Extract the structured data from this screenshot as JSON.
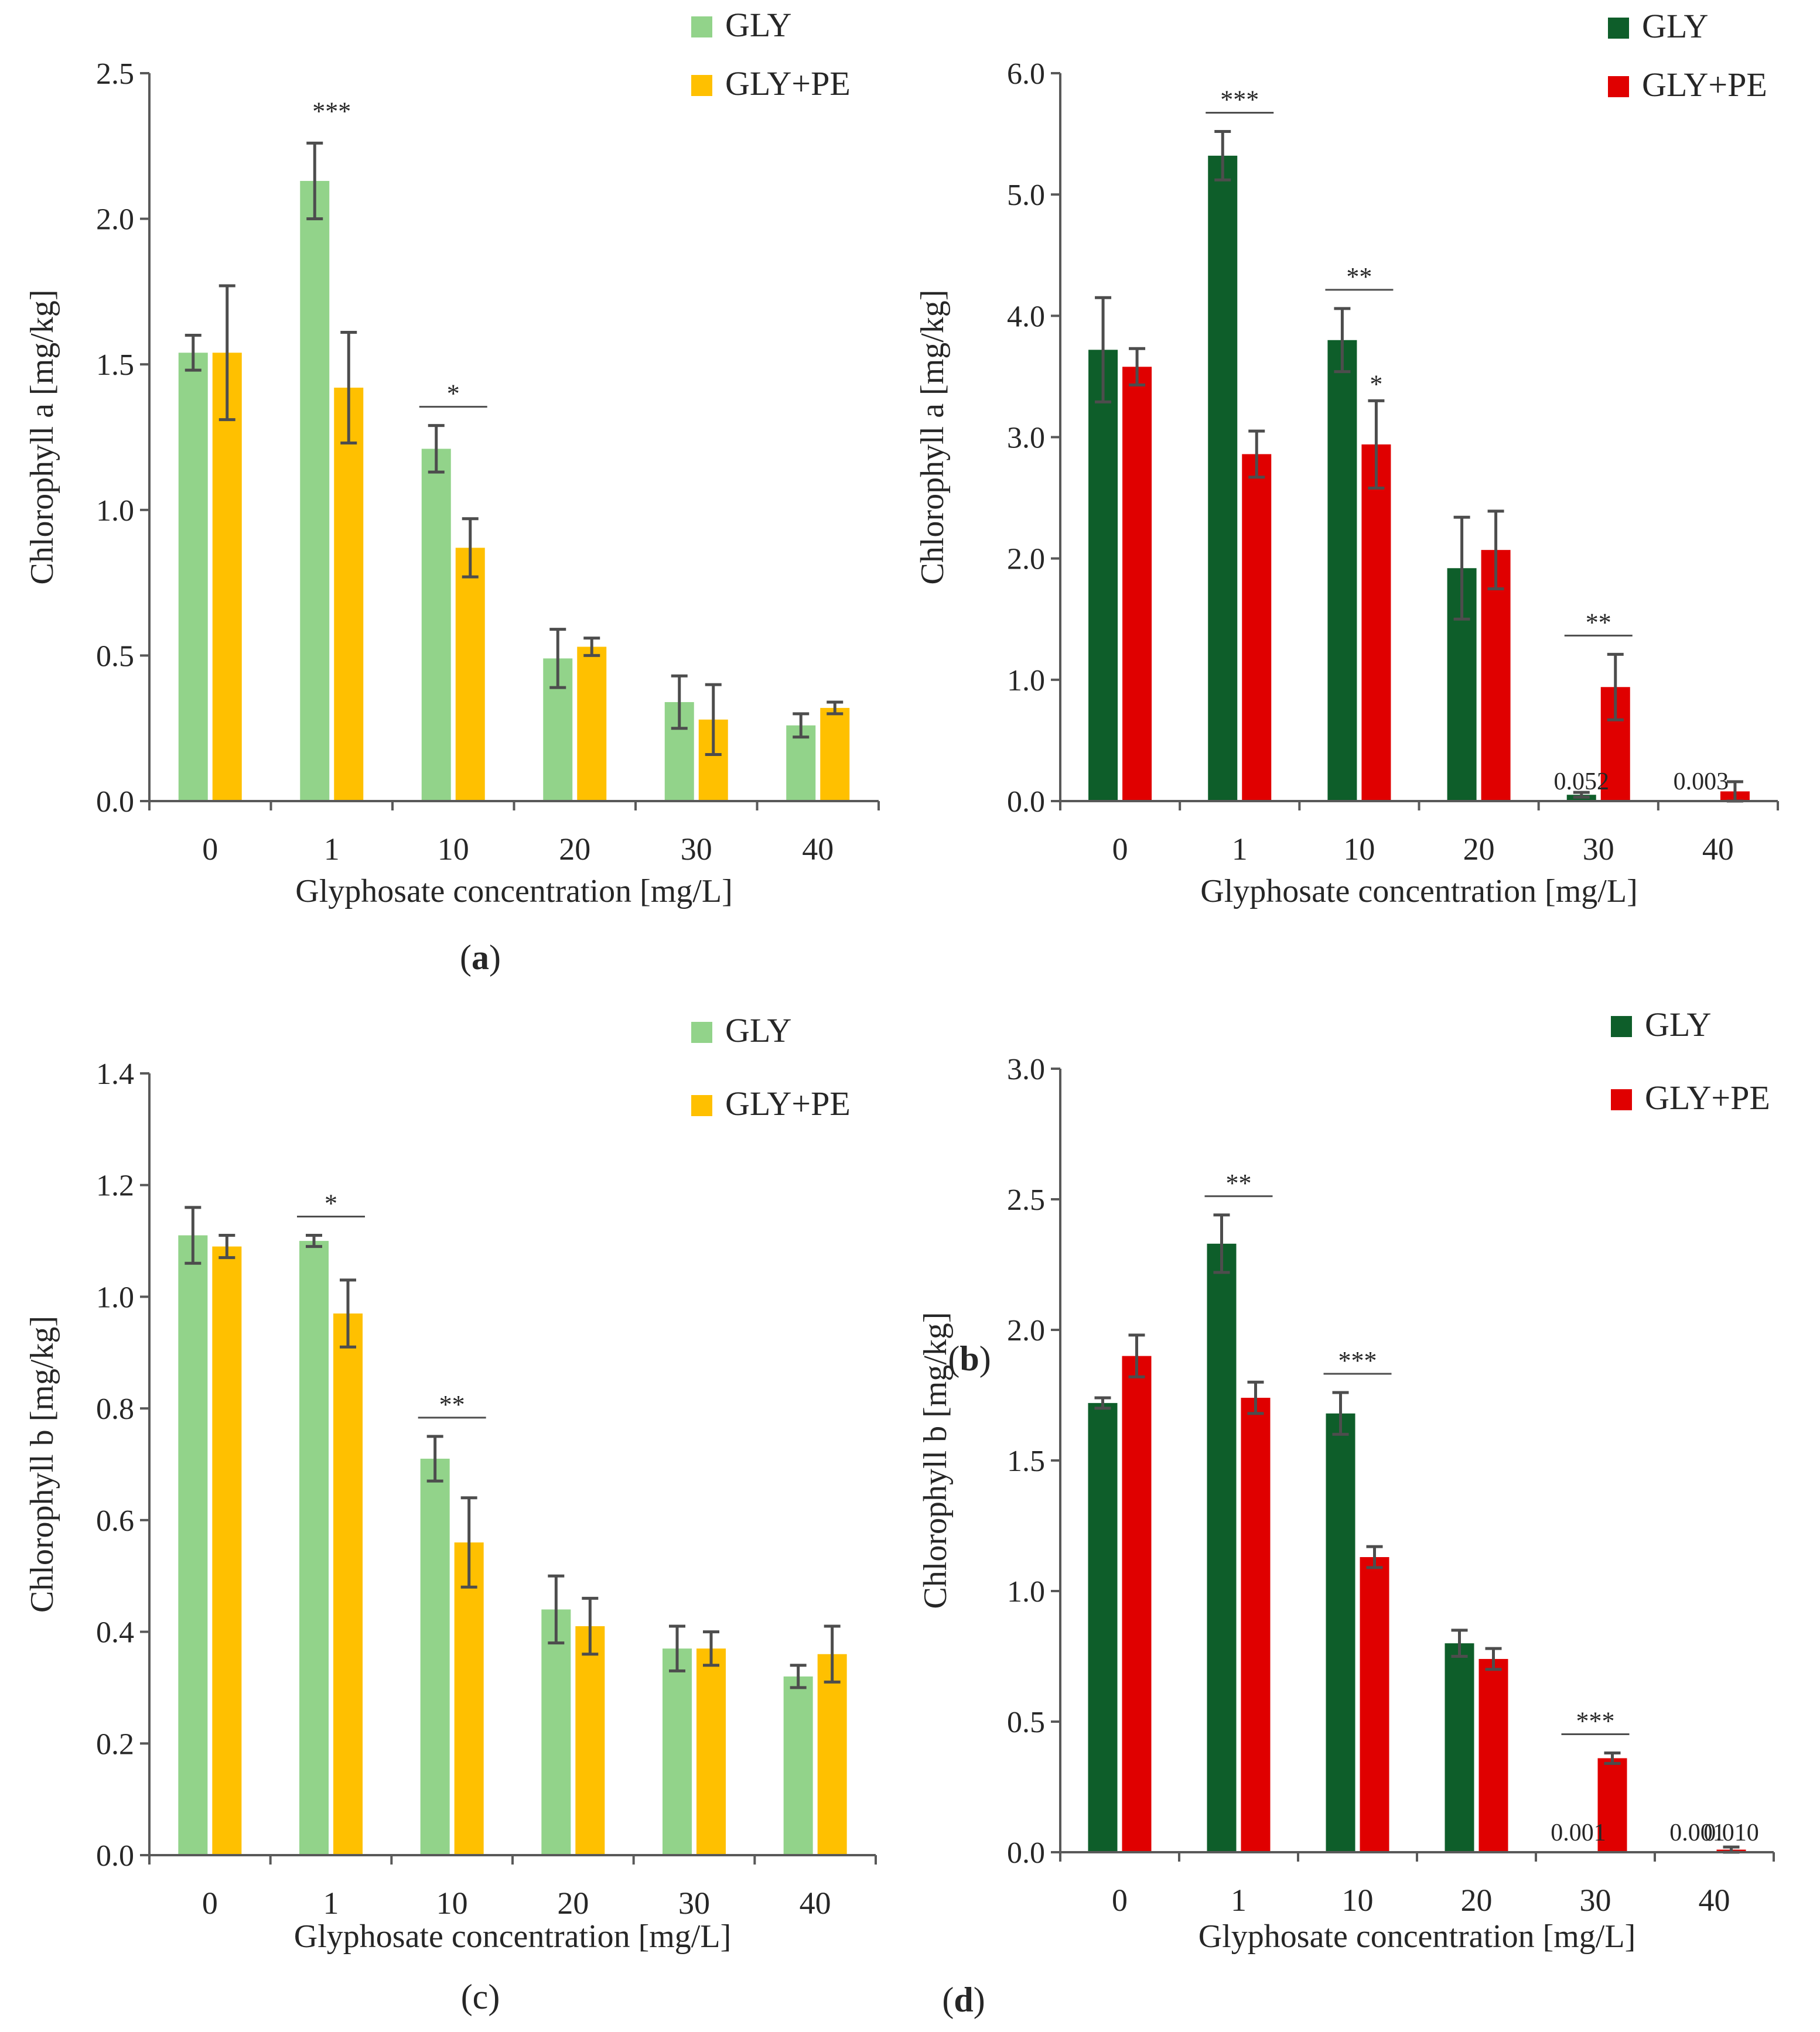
{
  "figure": {
    "legend": {
      "gly": "GLY",
      "glype": "GLY+PE"
    },
    "x_title": "Glyphosate concentration [mg/L]"
  },
  "colors": {
    "light_gly": "#92d38a",
    "light_glype": "#ffc000",
    "dark_gly": "#0e5e2a",
    "dark_glype": "#e00000",
    "axis": "#595959",
    "error_bar": "#4d4d4d",
    "text": "#262626"
  },
  "chart_data": [
    {
      "id": "a",
      "type": "bar",
      "palette": "light",
      "panel_label": "a",
      "panel_label_style": "bold-in-parens",
      "title": "",
      "xlabel": "Glyphosate concentration [mg/L]",
      "ylabel": "Chlorophyll a [mg/kg]",
      "categories": [
        "0",
        "1",
        "10",
        "20",
        "30",
        "40"
      ],
      "ylim": [
        0,
        2.5
      ],
      "yticks": [
        0,
        0.5,
        1.0,
        1.5,
        2.0,
        2.5
      ],
      "tick_decimals": 1,
      "legend": [
        "GLY",
        "GLY+PE"
      ],
      "legend_position": "top-right",
      "series": [
        {
          "name": "GLY",
          "values": [
            1.54,
            2.13,
            1.21,
            0.49,
            0.34,
            0.26
          ],
          "errors": [
            0.06,
            0.13,
            0.08,
            0.1,
            0.09,
            0.04
          ]
        },
        {
          "name": "GLY+PE",
          "values": [
            1.54,
            1.42,
            0.87,
            0.53,
            0.28,
            0.32
          ],
          "errors": [
            0.23,
            0.19,
            0.1,
            0.03,
            0.12,
            0.02
          ]
        }
      ],
      "significance": [
        {
          "category": 1,
          "label": "***",
          "line": false
        },
        {
          "category": 2,
          "label": "*",
          "line": true
        }
      ],
      "annotations": []
    },
    {
      "id": "b",
      "type": "bar",
      "palette": "dark",
      "panel_label": "b",
      "panel_label_style": "bold-in-parens",
      "title": "",
      "xlabel": "Glyphosate concentration [mg/L]",
      "ylabel": "Chlorophyll a [mg/kg]",
      "categories": [
        "0",
        "1",
        "10",
        "20",
        "30",
        "40"
      ],
      "ylim": [
        0,
        6.0
      ],
      "yticks": [
        0,
        1.0,
        2.0,
        3.0,
        4.0,
        5.0,
        6.0
      ],
      "tick_decimals": 1,
      "legend": [
        "GLY",
        "GLY+PE"
      ],
      "legend_position": "top-right",
      "series": [
        {
          "name": "GLY",
          "values": [
            3.72,
            5.32,
            3.8,
            1.92,
            0.052,
            0.003
          ],
          "errors": [
            0.43,
            0.2,
            0.26,
            0.42,
            0.02,
            0.0
          ]
        },
        {
          "name": "GLY+PE",
          "values": [
            3.58,
            2.86,
            2.94,
            2.07,
            0.94,
            0.08
          ],
          "errors": [
            0.15,
            0.19,
            0.36,
            0.32,
            0.27,
            0.08
          ]
        }
      ],
      "significance": [
        {
          "category": 1,
          "label": "***",
          "line": true
        },
        {
          "category": 2,
          "label": "**",
          "line": true
        },
        {
          "category": 2,
          "label": "*",
          "line": false,
          "series": 1
        },
        {
          "category": 4,
          "label": "**",
          "line": true
        }
      ],
      "annotations": [
        {
          "category": 4,
          "series": 0,
          "label": "0.052"
        },
        {
          "category": 5,
          "series": 0,
          "label": "0.003"
        }
      ]
    },
    {
      "id": "c",
      "type": "bar",
      "palette": "light",
      "panel_label": "c",
      "panel_label_style": "plain-in-parens",
      "title": "",
      "xlabel": "Glyphosate concentration [mg/L]",
      "ylabel": "Chlorophyll b [mg/kg]",
      "categories": [
        "0",
        "1",
        "10",
        "20",
        "30",
        "40"
      ],
      "ylim": [
        0,
        1.4
      ],
      "yticks": [
        0,
        0.2,
        0.4,
        0.6,
        0.8,
        1.0,
        1.2,
        1.4
      ],
      "tick_decimals": 1,
      "legend": [
        "GLY",
        "GLY+PE"
      ],
      "legend_position": "top-right",
      "series": [
        {
          "name": "GLY",
          "values": [
            1.11,
            1.1,
            0.71,
            0.44,
            0.37,
            0.32
          ],
          "errors": [
            0.05,
            0.01,
            0.04,
            0.06,
            0.04,
            0.02
          ]
        },
        {
          "name": "GLY+PE",
          "values": [
            1.09,
            0.97,
            0.56,
            0.41,
            0.37,
            0.36
          ],
          "errors": [
            0.02,
            0.06,
            0.08,
            0.05,
            0.03,
            0.05
          ]
        }
      ],
      "significance": [
        {
          "category": 1,
          "label": "*",
          "line": true
        },
        {
          "category": 2,
          "label": "**",
          "line": true
        }
      ],
      "annotations": []
    },
    {
      "id": "d",
      "type": "bar",
      "palette": "dark",
      "panel_label": "d",
      "panel_label_style": "bold-in-parens",
      "title": "",
      "xlabel": "Glyphosate concentration [mg/L]",
      "ylabel": "Chlorophyll b [mg/kg]",
      "categories": [
        "0",
        "1",
        "10",
        "20",
        "30",
        "40"
      ],
      "ylim": [
        0,
        3.0
      ],
      "yticks": [
        0,
        0.5,
        1.0,
        1.5,
        2.0,
        2.5,
        3.0
      ],
      "tick_decimals": 1,
      "legend": [
        "GLY",
        "GLY+PE"
      ],
      "legend_position": "top-right",
      "series": [
        {
          "name": "GLY",
          "values": [
            1.72,
            2.33,
            1.68,
            0.8,
            0.001,
            0.001
          ],
          "errors": [
            0.02,
            0.11,
            0.08,
            0.05,
            0.0,
            0.0
          ]
        },
        {
          "name": "GLY+PE",
          "values": [
            1.9,
            1.74,
            1.13,
            0.74,
            0.36,
            0.01
          ],
          "errors": [
            0.08,
            0.06,
            0.04,
            0.04,
            0.02,
            0.01
          ]
        }
      ],
      "significance": [
        {
          "category": 1,
          "label": "**",
          "line": true
        },
        {
          "category": 2,
          "label": "***",
          "line": true
        },
        {
          "category": 4,
          "label": "***",
          "line": true
        }
      ],
      "annotations": [
        {
          "category": 4,
          "series": 0,
          "label": "0.001"
        },
        {
          "category": 5,
          "series": 0,
          "label": "0.001"
        },
        {
          "category": 5,
          "series": 1,
          "label": "0.010"
        }
      ]
    }
  ]
}
